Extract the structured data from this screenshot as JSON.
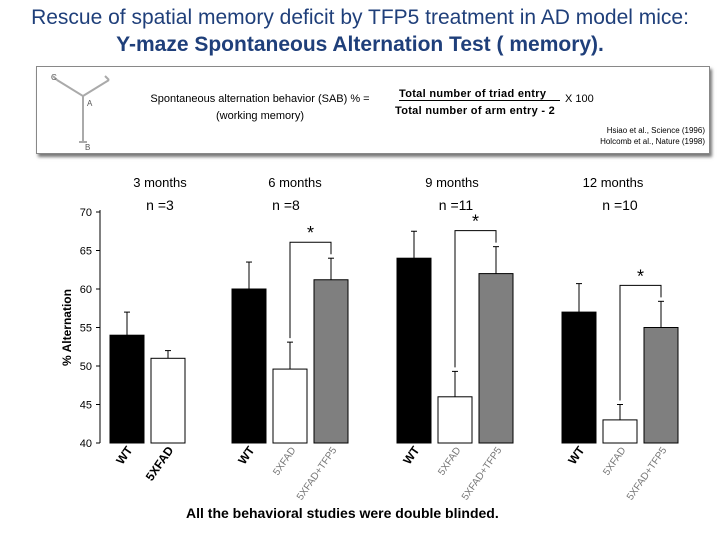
{
  "title": {
    "line1": "Rescue of spatial memory deficit by TFP5 treatment in AD model mice:",
    "line2": "Y-maze Spontaneous Alternation Test ( memory)."
  },
  "info_box": {
    "maze_letters": [
      "C",
      "A",
      "B"
    ],
    "sab_line1": "Spontaneous alternation behavior (SAB) % =",
    "sab_line2": "(working memory)",
    "numerator": "Total number of triad entry",
    "denominator": "Total number of arm entry - 2",
    "multiplier": "X 100",
    "ref1": "Hsiao et al., Science (1996)",
    "ref2": "Holcomb et al., Nature (1998)"
  },
  "footer": "All the behavioral studies were double blinded.",
  "chart_data": {
    "type": "bar",
    "ylabel": "% Alternation",
    "ylim": [
      40,
      70
    ],
    "yticks": [
      40,
      45,
      50,
      55,
      60,
      65,
      70
    ],
    "groups": [
      {
        "label": "3 months",
        "n": "n =3",
        "categories": [
          "WT",
          "5XFAD"
        ],
        "values": [
          54,
          51
        ],
        "errors": [
          3,
          1
        ],
        "colors": [
          "#000000",
          "#ffffff"
        ],
        "sig": null
      },
      {
        "label": "6 months",
        "n": "n =8",
        "categories": [
          "WT",
          "5XFAD",
          "5XFAD+TFP5"
        ],
        "values": [
          60,
          49.6,
          61.2
        ],
        "errors": [
          3.5,
          3.5,
          2.8
        ],
        "colors": [
          "#000000",
          "#ffffff",
          "#7f7f7f"
        ],
        "sig": "*"
      },
      {
        "label": "9 months",
        "n": "n =11",
        "categories": [
          "WT",
          "5XFAD",
          "5XFAD+TFP5"
        ],
        "values": [
          64,
          46,
          62
        ],
        "errors": [
          3.5,
          3.3,
          3.5
        ],
        "colors": [
          "#000000",
          "#ffffff",
          "#7f7f7f"
        ],
        "sig": "*"
      },
      {
        "label": "12 months",
        "n": "n =10",
        "categories": [
          "WT",
          "5XFAD",
          "5XFAD+TFP5"
        ],
        "values": [
          57,
          43,
          55
        ],
        "errors": [
          3.7,
          2.0,
          3.4
        ],
        "colors": [
          "#000000",
          "#ffffff",
          "#7f7f7f"
        ],
        "sig": "*"
      }
    ]
  }
}
